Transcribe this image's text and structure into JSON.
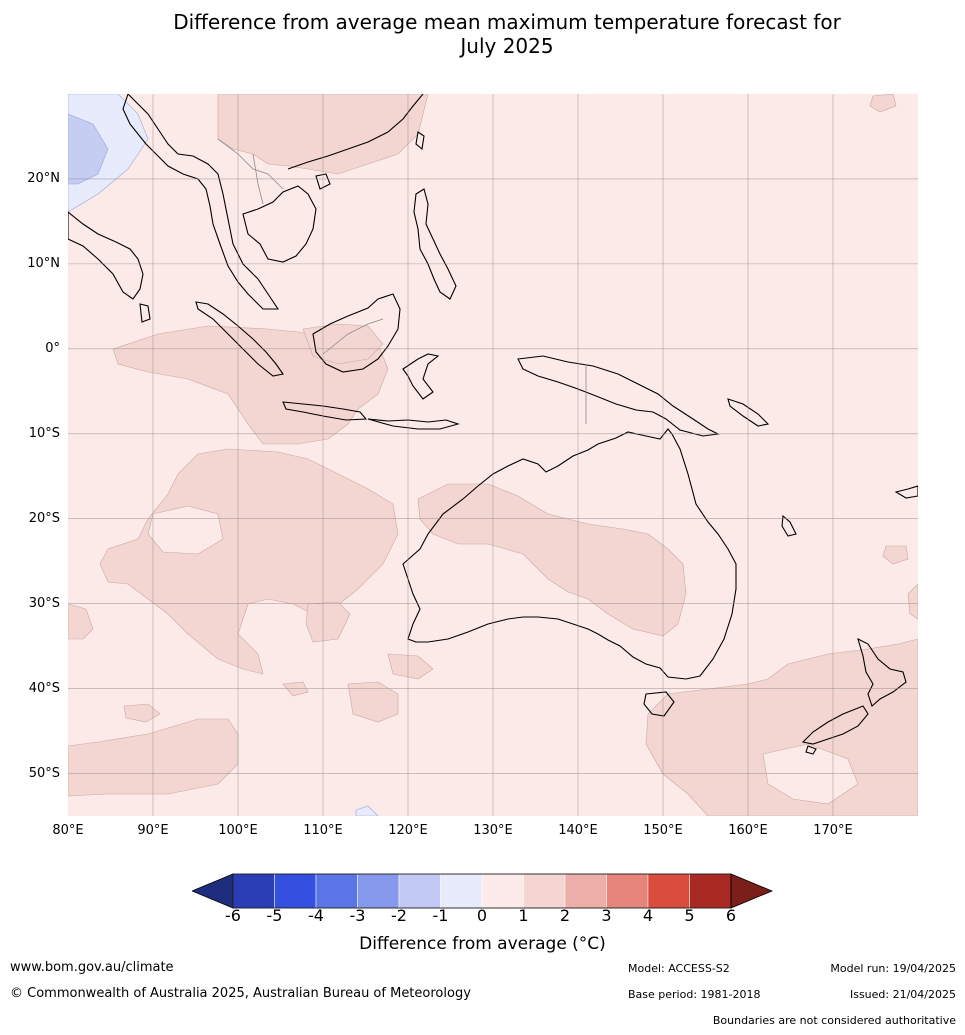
{
  "title": {
    "line1": "Difference from average mean maximum temperature forecast for",
    "line2": "July 2025"
  },
  "map": {
    "lon_range": [
      80,
      180
    ],
    "lat_range": [
      -55,
      30
    ],
    "lat_labels": [
      "20°N",
      "10°N",
      "0°",
      "10°S",
      "20°S",
      "30°S",
      "40°S",
      "50°S"
    ],
    "lon_labels": [
      "80°E",
      "90°E",
      "100°E",
      "110°E",
      "120°E",
      "130°E",
      "140°E",
      "150°E",
      "160°E",
      "170°E"
    ],
    "background_color": "#fbeae8",
    "anomaly_colors": {
      "0_to_1": "#fbeae8",
      "1_to_2": "#f3d5d1",
      "minus1_to_0": "#e7ebfb",
      "minus2_to_minus1": "#c5cdf3"
    }
  },
  "colorbar": {
    "ticks": [
      "-6",
      "-5",
      "-4",
      "-3",
      "-2",
      "-1",
      "0",
      "1",
      "2",
      "3",
      "4",
      "5",
      "6"
    ],
    "colors": [
      "#1f2d7e",
      "#2a3fb5",
      "#3350e0",
      "#5c75e6",
      "#8799ec",
      "#c1c8f4",
      "#e8ebfb",
      "#fcebea",
      "#f5d5d1",
      "#ecaea8",
      "#e5857c",
      "#d94c3e",
      "#a82a22",
      "#7a1f1a"
    ],
    "label": "Difference from average (°C)"
  },
  "footer": {
    "website": "www.bom.gov.au/climate",
    "copyright": "© Commonwealth of Australia 2025, Australian Bureau of Meteorology",
    "model": "Model: ACCESS-S2",
    "base_period": "Base period: 1981-2018",
    "model_run": "Model run: 19/04/2025",
    "issued": "Issued: 21/04/2025",
    "disclaimer": "Boundaries are not considered authoritative"
  }
}
